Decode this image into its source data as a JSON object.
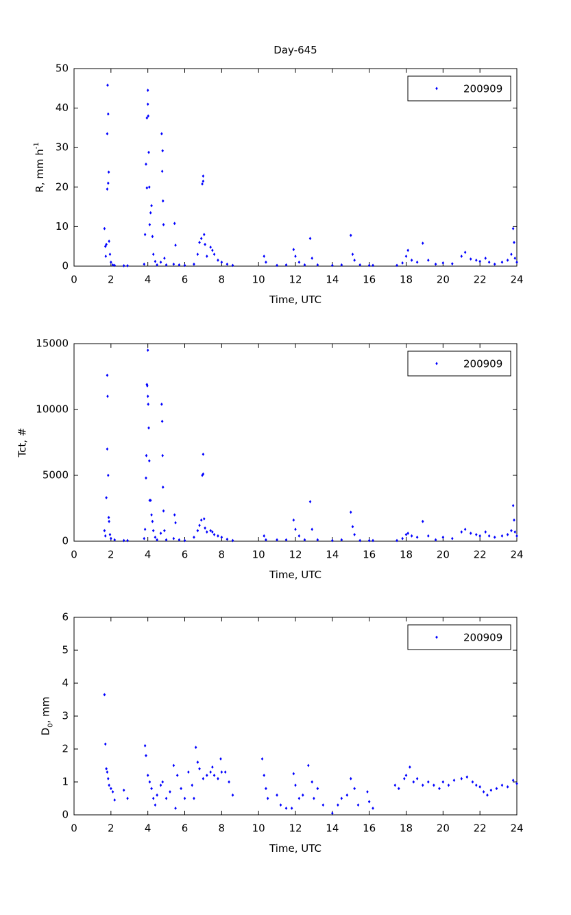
{
  "chart_data": [
    {
      "type": "scatter",
      "title": "Day-645",
      "xlabel": "Time, UTC",
      "ylabel": {
        "text": "R, mm h",
        "sup": "-1"
      },
      "xlim": [
        0,
        24
      ],
      "xticks": [
        0,
        2,
        4,
        6,
        8,
        10,
        12,
        14,
        16,
        18,
        20,
        22,
        24
      ],
      "ylim": [
        0,
        50
      ],
      "yticks": [
        0,
        10,
        20,
        30,
        40,
        50
      ],
      "legend": "upper right",
      "series": [
        {
          "name": "200909",
          "color": "#0000ff",
          "x": [
            1.65,
            1.7,
            1.72,
            1.75,
            1.8,
            1.8,
            1.82,
            1.85,
            1.85,
            1.88,
            1.9,
            1.95,
            2.0,
            2.1,
            2.2,
            2.7,
            2.9,
            3.8,
            3.85,
            3.9,
            3.95,
            3.95,
            4.0,
            4.0,
            4.02,
            4.05,
            4.08,
            4.1,
            4.15,
            4.2,
            4.25,
            4.3,
            4.4,
            4.5,
            4.7,
            4.75,
            4.78,
            4.8,
            4.82,
            4.85,
            4.9,
            5.0,
            5.4,
            5.45,
            5.5,
            5.7,
            6.0,
            6.5,
            6.7,
            6.8,
            6.9,
            6.95,
            7.0,
            7.0,
            7.05,
            7.1,
            7.2,
            7.4,
            7.5,
            7.6,
            7.8,
            8.0,
            8.3,
            8.6,
            10.3,
            10.4,
            11.0,
            11.5,
            11.9,
            12.0,
            12.2,
            12.5,
            12.8,
            12.9,
            13.2,
            14.0,
            14.5,
            15.0,
            15.1,
            15.2,
            15.5,
            16.0,
            16.2,
            17.5,
            17.8,
            18.0,
            18.1,
            18.3,
            18.6,
            18.9,
            19.2,
            19.6,
            20.0,
            20.5,
            21.0,
            21.2,
            21.5,
            21.8,
            22.0,
            22.3,
            22.5,
            22.8,
            23.2,
            23.5,
            23.7,
            23.8,
            23.85,
            23.9,
            24.0
          ],
          "values": [
            9.5,
            5,
            2.5,
            5.5,
            19.5,
            33.5,
            45.8,
            38.5,
            21,
            23.8,
            6.3,
            3,
            1,
            0.3,
            0.2,
            0.1,
            0.1,
            0.5,
            8,
            25.8,
            19.8,
            37.5,
            41,
            44.5,
            38,
            28.8,
            20,
            10.5,
            13.5,
            15.3,
            7.5,
            3,
            1.2,
            0.3,
            1,
            33.5,
            24,
            29.2,
            16.5,
            10.5,
            2,
            0.3,
            0.5,
            10.8,
            5.3,
            0.3,
            0.2,
            0.5,
            3,
            6,
            7,
            20.8,
            22.8,
            21.5,
            8,
            5.5,
            2.5,
            4.8,
            4,
            3,
            1.5,
            1,
            0.5,
            0.2,
            2.5,
            1,
            0.2,
            0.3,
            4.2,
            2.5,
            1,
            0.3,
            7,
            2,
            0.3,
            0.2,
            0.3,
            7.8,
            3,
            1.5,
            0.3,
            0.2,
            0.2,
            0.2,
            0.8,
            2.5,
            4,
            1.5,
            1,
            5.8,
            1.5,
            0.5,
            0.8,
            0.6,
            2.5,
            3.5,
            1.8,
            1.5,
            1.2,
            2,
            1,
            0.5,
            1,
            1.5,
            3,
            9.5,
            6,
            2,
            1
          ]
        }
      ]
    },
    {
      "type": "scatter",
      "xlabel": "Time, UTC",
      "ylabel": {
        "text": "Tct, #"
      },
      "xlim": [
        0,
        24
      ],
      "xticks": [
        0,
        2,
        4,
        6,
        8,
        10,
        12,
        14,
        16,
        18,
        20,
        22,
        24
      ],
      "ylim": [
        0,
        15000
      ],
      "yticks": [
        0,
        5000,
        10000,
        15000
      ],
      "legend": "upper right",
      "series": [
        {
          "name": "200909",
          "color": "#0000ff",
          "x": [
            1.65,
            1.7,
            1.75,
            1.8,
            1.8,
            1.82,
            1.85,
            1.88,
            1.9,
            1.95,
            2.0,
            2.2,
            2.7,
            2.9,
            3.8,
            3.85,
            3.9,
            3.92,
            3.95,
            3.97,
            4.0,
            4.0,
            4.02,
            4.05,
            4.08,
            4.1,
            4.15,
            4.2,
            4.25,
            4.3,
            4.4,
            4.5,
            4.7,
            4.75,
            4.78,
            4.8,
            4.82,
            4.85,
            4.9,
            5.0,
            5.4,
            5.45,
            5.5,
            5.7,
            6.0,
            6.5,
            6.7,
            6.8,
            6.9,
            6.95,
            7.0,
            7.0,
            7.05,
            7.1,
            7.2,
            7.4,
            7.5,
            7.6,
            7.8,
            8.0,
            8.3,
            8.6,
            10.3,
            10.4,
            11.0,
            11.5,
            11.9,
            12.0,
            12.2,
            12.5,
            12.8,
            12.9,
            13.2,
            14.0,
            14.5,
            15.0,
            15.1,
            15.2,
            15.5,
            16.0,
            16.2,
            17.5,
            17.8,
            18.0,
            18.1,
            18.3,
            18.6,
            18.9,
            19.2,
            19.6,
            20.0,
            20.5,
            21.0,
            21.2,
            21.5,
            21.8,
            22.0,
            22.3,
            22.5,
            22.8,
            23.2,
            23.5,
            23.7,
            23.8,
            23.85,
            23.9,
            24.0
          ],
          "values": [
            800,
            400,
            3300,
            7000,
            12600,
            11000,
            5000,
            1800,
            1500,
            500,
            200,
            100,
            50,
            50,
            200,
            900,
            4800,
            6500,
            11900,
            11800,
            14500,
            11000,
            10400,
            8600,
            6100,
            3100,
            3100,
            2000,
            1500,
            800,
            300,
            100,
            600,
            10400,
            9100,
            6500,
            4100,
            2300,
            800,
            100,
            200,
            2000,
            1400,
            100,
            50,
            300,
            800,
            1200,
            1600,
            5000,
            6600,
            5100,
            1700,
            1000,
            700,
            800,
            700,
            500,
            400,
            300,
            150,
            50,
            400,
            100,
            100,
            100,
            1600,
            900,
            400,
            100,
            3000,
            900,
            100,
            50,
            100,
            2200,
            1100,
            500,
            50,
            50,
            50,
            50,
            200,
            500,
            600,
            400,
            300,
            1500,
            400,
            100,
            300,
            200,
            700,
            900,
            600,
            500,
            400,
            700,
            400,
            300,
            400,
            500,
            800,
            2700,
            1600,
            700,
            400
          ]
        }
      ]
    },
    {
      "type": "scatter",
      "xlabel": "Time, UTC",
      "ylabel": {
        "text": "D",
        "sub": "0",
        "tail": ", mm"
      },
      "xlim": [
        0,
        24
      ],
      "xticks": [
        0,
        2,
        4,
        6,
        8,
        10,
        12,
        14,
        16,
        18,
        20,
        22,
        24
      ],
      "ylim": [
        0,
        6
      ],
      "yticks": [
        0,
        1,
        2,
        3,
        4,
        5,
        6
      ],
      "legend": "upper right",
      "series": [
        {
          "name": "200909",
          "color": "#0000ff",
          "x": [
            1.65,
            1.7,
            1.75,
            1.8,
            1.85,
            1.9,
            2.0,
            2.1,
            2.2,
            2.7,
            2.9,
            3.85,
            3.9,
            4.0,
            4.1,
            4.2,
            4.3,
            4.4,
            4.5,
            4.7,
            4.8,
            5.0,
            5.2,
            5.4,
            5.5,
            5.6,
            5.8,
            6.0,
            6.2,
            6.4,
            6.5,
            6.6,
            6.7,
            6.8,
            7.0,
            7.2,
            7.4,
            7.5,
            7.6,
            7.8,
            7.95,
            8.0,
            8.2,
            8.4,
            8.6,
            10.2,
            10.3,
            10.4,
            10.5,
            11.0,
            11.2,
            11.5,
            11.8,
            11.9,
            12.0,
            12.2,
            12.4,
            12.7,
            12.9,
            13.0,
            13.2,
            13.5,
            14.0,
            14.3,
            14.5,
            14.8,
            15.0,
            15.2,
            15.4,
            15.9,
            16.0,
            16.2,
            17.4,
            17.6,
            17.9,
            18.0,
            18.2,
            18.4,
            18.6,
            18.9,
            19.2,
            19.5,
            19.8,
            20.0,
            20.3,
            20.6,
            21.0,
            21.3,
            21.6,
            21.8,
            22.0,
            22.2,
            22.4,
            22.6,
            22.9,
            23.2,
            23.5,
            23.8,
            24.0
          ],
          "values": [
            3.65,
            2.15,
            1.4,
            1.3,
            1.1,
            0.9,
            0.8,
            0.7,
            0.45,
            0.75,
            0.5,
            2.1,
            1.8,
            1.2,
            1.0,
            0.8,
            0.5,
            0.3,
            0.6,
            0.9,
            1.0,
            0.5,
            0.7,
            1.5,
            0.2,
            1.2,
            0.8,
            0.5,
            1.3,
            0.9,
            0.5,
            2.05,
            1.6,
            1.4,
            1.1,
            1.2,
            1.3,
            1.45,
            1.2,
            1.1,
            1.7,
            1.3,
            1.3,
            1.0,
            0.6,
            1.7,
            1.2,
            0.8,
            0.5,
            0.6,
            0.3,
            0.2,
            0.2,
            1.25,
            0.9,
            0.5,
            0.6,
            1.5,
            1.0,
            0.5,
            0.8,
            0.3,
            0.05,
            0.3,
            0.5,
            0.6,
            1.1,
            0.8,
            0.3,
            0.7,
            0.4,
            0.2,
            0.9,
            0.8,
            1.1,
            1.2,
            1.45,
            1.0,
            1.1,
            0.9,
            1.0,
            0.9,
            0.8,
            1.0,
            0.9,
            1.05,
            1.1,
            1.15,
            1.0,
            0.9,
            0.85,
            0.7,
            0.6,
            0.75,
            0.8,
            0.9,
            0.85,
            1.05,
            0.95
          ]
        }
      ]
    }
  ]
}
